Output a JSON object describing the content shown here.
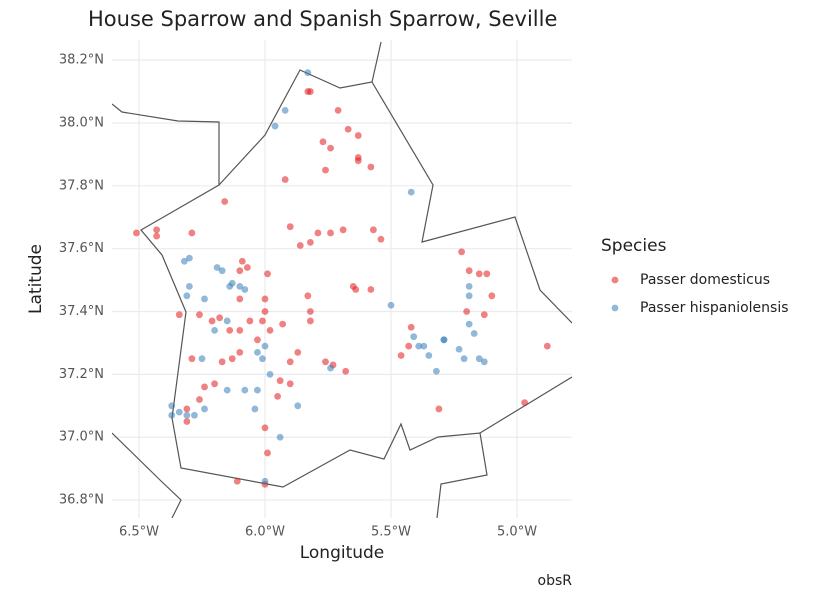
{
  "chart_data": {
    "type": "scatter",
    "title": "House Sparrow and Spanish Sparrow, Seville",
    "x_label": "Longitude",
    "y_label": "Latitude",
    "caption": "obsR",
    "legend_title": "Species",
    "legend_position": "right",
    "grid": true,
    "xlim": [
      -6.607,
      -4.782
    ],
    "ylim": [
      36.743,
      38.264
    ],
    "xticks": [
      {
        "value": -6.5,
        "label": "6.5°W"
      },
      {
        "value": -6.0,
        "label": "6.0°W"
      },
      {
        "value": -5.5,
        "label": "5.5°W"
      },
      {
        "value": -5.0,
        "label": "5.0°W"
      }
    ],
    "yticks": [
      {
        "value": 36.8,
        "label": "36.8°N"
      },
      {
        "value": 37.0,
        "label": "37.0°N"
      },
      {
        "value": 37.2,
        "label": "37.2°N"
      },
      {
        "value": 37.4,
        "label": "37.4°N"
      },
      {
        "value": 37.6,
        "label": "37.6°N"
      },
      {
        "value": 37.8,
        "label": "37.8°N"
      },
      {
        "value": 38.0,
        "label": "38.0°N"
      },
      {
        "value": 38.2,
        "label": "38.2°N"
      }
    ],
    "series": [
      {
        "name": "Passer domesticus",
        "color": "#e41a1c",
        "x": [
          -6.51,
          -6.43,
          -6.43,
          -6.29,
          -6.16,
          -5.83,
          -5.82,
          -5.71,
          -5.77,
          -5.67,
          -5.63,
          -5.63,
          -5.63,
          -5.58,
          -5.74,
          -5.76,
          -5.92,
          -5.86,
          -5.82,
          -5.79,
          -5.74,
          -5.57,
          -5.54,
          -5.65,
          -5.64,
          -5.58,
          -5.83,
          -5.82,
          -5.82,
          -5.99,
          -6.09,
          -6.1,
          -6.07,
          -6.0,
          -6.0,
          -6.01,
          -5.98,
          -6.03,
          -6.06,
          -6.1,
          -6.14,
          -6.18,
          -6.21,
          -6.26,
          -6.1,
          -5.93,
          -5.9,
          -5.87,
          -5.76,
          -5.73,
          -5.68,
          -5.9,
          -5.94,
          -5.95,
          -6.0,
          -5.99,
          -6.11,
          -6.0,
          -5.31,
          -5.43,
          -5.46,
          -5.22,
          -5.19,
          -5.15,
          -5.12,
          -5.2,
          -5.13,
          -5.1,
          -4.97,
          -4.88,
          -6.29,
          -6.26,
          -6.24,
          -6.2,
          -6.1,
          -6.17,
          -6.13,
          -6.34,
          -6.31,
          -6.31,
          -5.9,
          -5.69,
          -5.42
        ],
        "y": [
          37.65,
          37.66,
          37.64,
          37.65,
          37.75,
          38.1,
          38.1,
          38.04,
          37.94,
          37.98,
          37.96,
          37.89,
          37.88,
          37.86,
          37.92,
          37.85,
          37.82,
          37.61,
          37.62,
          37.65,
          37.65,
          37.66,
          37.63,
          37.48,
          37.47,
          37.47,
          37.45,
          37.4,
          37.37,
          37.52,
          37.56,
          37.53,
          37.54,
          37.44,
          37.4,
          37.37,
          37.34,
          37.31,
          37.37,
          37.34,
          37.34,
          37.38,
          37.37,
          37.39,
          37.44,
          37.36,
          37.24,
          37.27,
          37.24,
          37.23,
          37.21,
          37.17,
          37.18,
          37.13,
          37.03,
          36.95,
          36.86,
          36.85,
          37.09,
          37.29,
          37.26,
          37.59,
          37.53,
          37.52,
          37.52,
          37.4,
          37.39,
          37.45,
          37.11,
          37.29,
          37.25,
          37.12,
          37.16,
          37.17,
          37.27,
          37.24,
          37.25,
          37.39,
          37.09,
          37.05,
          37.67,
          37.66,
          37.35
        ]
      },
      {
        "name": "Passer hispaniolensis",
        "color": "#377eb8",
        "x": [
          -5.83,
          -5.92,
          -5.96,
          -5.42,
          -6.19,
          -6.17,
          -6.3,
          -6.31,
          -6.24,
          -6.1,
          -6.08,
          -6.13,
          -6.3,
          -6.32,
          -6.15,
          -6.2,
          -6.25,
          -6.01,
          -5.98,
          -6.03,
          -6.04,
          -6.08,
          -6.15,
          -6.24,
          -6.34,
          -6.37,
          -6.37,
          -6.31,
          -6.28,
          -5.87,
          -5.94,
          -6.0,
          -5.5,
          -5.41,
          -5.39,
          -5.37,
          -5.29,
          -5.35,
          -5.32,
          -5.29,
          -5.23,
          -5.21,
          -5.19,
          -5.17,
          -5.15,
          -5.13,
          -5.19,
          -5.19,
          -6.0,
          -6.03,
          -5.74,
          -6.14
        ],
        "y": [
          38.16,
          38.04,
          37.99,
          37.78,
          37.54,
          37.53,
          37.48,
          37.45,
          37.44,
          37.48,
          37.47,
          37.49,
          37.57,
          37.56,
          37.37,
          37.34,
          37.25,
          37.25,
          37.2,
          37.15,
          37.09,
          37.15,
          37.15,
          37.09,
          37.08,
          37.1,
          37.07,
          37.07,
          37.07,
          37.1,
          37.0,
          36.86,
          37.42,
          37.32,
          37.29,
          37.29,
          37.31,
          37.26,
          37.21,
          37.31,
          37.28,
          37.25,
          37.36,
          37.33,
          37.25,
          37.24,
          37.45,
          37.48,
          37.29,
          37.27,
          37.22,
          37.48
        ]
      }
    ]
  }
}
